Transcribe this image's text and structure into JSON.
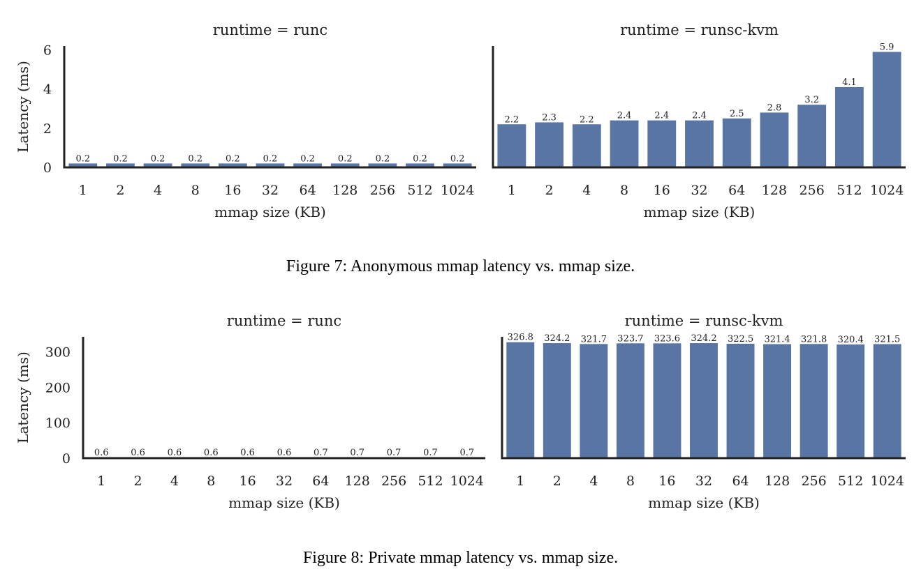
{
  "figures": [
    {
      "caption": "Figure 7:  Anonymous mmap latency vs. mmap size."
    },
    {
      "caption": "Figure 8:  Private mmap latency vs. mmap size."
    }
  ],
  "colors": {
    "bar": "#5975a4",
    "axis": "#222222"
  },
  "chart_data": [
    {
      "type": "bar",
      "title": "runtime = runc",
      "xlabel": "mmap size (KB)",
      "ylabel": "Latency (ms)",
      "categories": [
        "1",
        "2",
        "4",
        "8",
        "16",
        "32",
        "64",
        "128",
        "256",
        "512",
        "1024"
      ],
      "values": [
        0.2,
        0.2,
        0.2,
        0.2,
        0.2,
        0.2,
        0.2,
        0.2,
        0.2,
        0.2,
        0.2
      ],
      "data_labels": [
        "0.2",
        "0.2",
        "0.2",
        "0.2",
        "0.2",
        "0.2",
        "0.2",
        "0.2",
        "0.2",
        "0.2",
        "0.2"
      ],
      "ylim": [
        0,
        6.2
      ],
      "yticks": [
        0,
        2,
        4,
        6
      ],
      "shared_y_with_next": true
    },
    {
      "type": "bar",
      "title": "runtime = runsc-kvm",
      "xlabel": "mmap size (KB)",
      "ylabel": "",
      "categories": [
        "1",
        "2",
        "4",
        "8",
        "16",
        "32",
        "64",
        "128",
        "256",
        "512",
        "1024"
      ],
      "values": [
        2.2,
        2.3,
        2.2,
        2.4,
        2.4,
        2.4,
        2.5,
        2.8,
        3.2,
        4.1,
        5.9
      ],
      "data_labels": [
        "2.2",
        "2.3",
        "2.2",
        "2.4",
        "2.4",
        "2.4",
        "2.5",
        "2.8",
        "3.2",
        "4.1",
        "5.9"
      ],
      "ylim": [
        0,
        6.2
      ],
      "yticks": []
    },
    {
      "type": "bar",
      "title": "runtime = runc",
      "xlabel": "mmap size (KB)",
      "ylabel": "Latency (ms)",
      "categories": [
        "1",
        "2",
        "4",
        "8",
        "16",
        "32",
        "64",
        "128",
        "256",
        "512",
        "1024"
      ],
      "values": [
        0.6,
        0.6,
        0.6,
        0.6,
        0.6,
        0.6,
        0.7,
        0.7,
        0.7,
        0.7,
        0.7
      ],
      "data_labels": [
        "0.6",
        "0.6",
        "0.6",
        "0.6",
        "0.6",
        "0.6",
        "0.7",
        "0.7",
        "0.7",
        "0.7",
        "0.7"
      ],
      "ylim": [
        0,
        342
      ],
      "yticks": [
        0,
        100,
        200,
        300
      ]
    },
    {
      "type": "bar",
      "title": "runtime = runsc-kvm",
      "xlabel": "mmap size (KB)",
      "ylabel": "",
      "categories": [
        "1",
        "2",
        "4",
        "8",
        "16",
        "32",
        "64",
        "128",
        "256",
        "512",
        "1024"
      ],
      "values": [
        326.8,
        324.2,
        321.7,
        323.7,
        323.6,
        324.2,
        322.5,
        321.4,
        321.8,
        320.4,
        321.5
      ],
      "data_labels": [
        "326.8",
        "324.2",
        "321.7",
        "323.7",
        "323.6",
        "324.2",
        "322.5",
        "321.4",
        "321.8",
        "320.4",
        "321.5"
      ],
      "ylim": [
        0,
        342
      ],
      "yticks": []
    }
  ]
}
